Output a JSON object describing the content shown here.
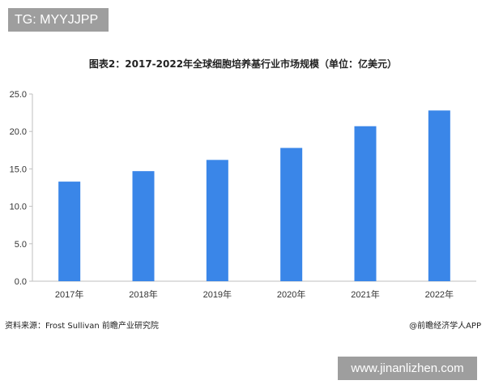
{
  "watermark_tag": "TG: MYYJJPP",
  "website_tag": "www.jinanlizhen.com",
  "source_text": "资料来源：Frost Sullivan 前瞻产业研究院",
  "brand_text": "@前瞻经济学人APP",
  "colors": {
    "bar": "#3a86e8",
    "axis": "#bfbfbf",
    "grid": "#e6e6e6"
  },
  "chart_data": {
    "type": "bar",
    "title": "图表2：2017-2022年全球细胞培养基行业市场规模（单位：亿美元）",
    "xlabel": "",
    "ylabel": "",
    "categories": [
      "2017年",
      "2018年",
      "2019年",
      "2020年",
      "2021年",
      "2022年"
    ],
    "values": [
      13.3,
      14.7,
      16.2,
      17.8,
      20.7,
      22.8
    ],
    "ylim": [
      0,
      25
    ],
    "yticks": [
      "0.0",
      "5.0",
      "10.0",
      "15.0",
      "20.0",
      "25.0"
    ],
    "grid": false,
    "legend": "none"
  }
}
